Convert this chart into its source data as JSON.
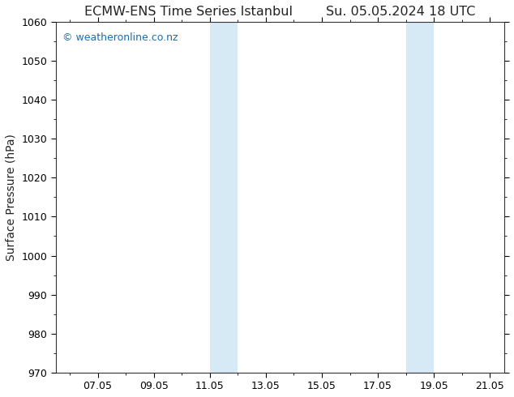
{
  "title_left": "ECMW-ENS Time Series Istanbul",
  "title_right": "Su. 05.05.2024 18 UTC",
  "ylabel": "Surface Pressure (hPa)",
  "ylim": [
    970,
    1060
  ],
  "ytick_step": 10,
  "xlim_start": 5.5,
  "xlim_end": 21.5,
  "xtick_labels": [
    "07.05",
    "09.05",
    "11.05",
    "13.05",
    "15.05",
    "17.05",
    "19.05",
    "21.05"
  ],
  "xtick_positions": [
    7.0,
    9.0,
    11.0,
    13.0,
    15.0,
    17.0,
    19.0,
    21.0
  ],
  "shaded_bands": [
    {
      "xmin": 11.0,
      "xmax": 12.0
    },
    {
      "xmin": 18.0,
      "xmax": 19.0
    }
  ],
  "band_color": "#d6eaf5",
  "background_color": "#ffffff",
  "plot_bg_color": "#ffffff",
  "watermark": "© weatheronline.co.nz",
  "watermark_color": "#1a6eb5",
  "title_fontsize": 11.5,
  "ylabel_fontsize": 10,
  "tick_fontsize": 9,
  "watermark_fontsize": 9
}
